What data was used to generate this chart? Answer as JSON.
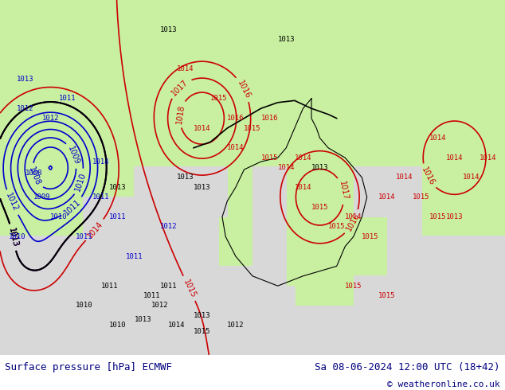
{
  "title_left": "Surface pressure [hPa] ECMWF",
  "title_right": "Sa 08-06-2024 12:00 UTC (18+42)",
  "copyright": "© weatheronline.co.uk",
  "background_land_color": "#c8f0a0",
  "background_sea_color": "#d8d8d8",
  "text_color_black": "#000000",
  "text_color_blue": "#0000cc",
  "text_color_red": "#cc0000",
  "bottom_bar_color": "#ffffff",
  "bottom_text_color": "#000080",
  "figsize": [
    6.34,
    4.9
  ],
  "dpi": 100
}
